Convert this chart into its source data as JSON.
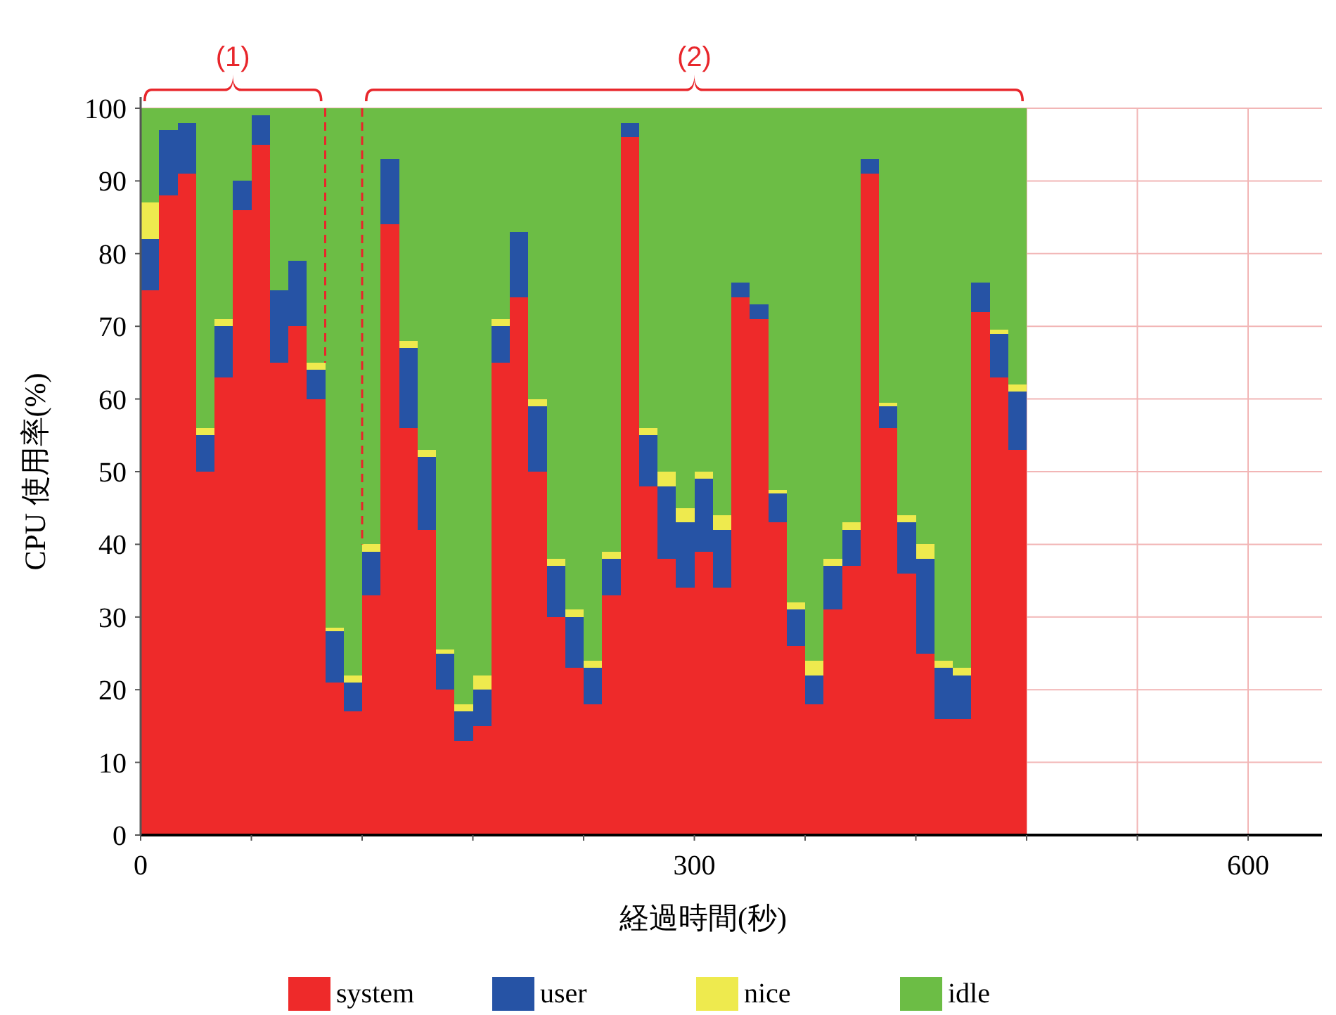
{
  "chart_data": {
    "type": "bar",
    "stacked": true,
    "x": [
      5,
      15,
      25,
      35,
      45,
      55,
      65,
      75,
      85,
      95,
      105,
      115,
      125,
      135,
      145,
      155,
      165,
      175,
      185,
      195,
      205,
      215,
      225,
      235,
      245,
      255,
      265,
      275,
      285,
      295,
      305,
      315,
      325,
      335,
      345,
      355,
      365,
      375,
      385,
      395,
      405,
      415,
      425,
      435,
      445,
      455,
      465,
      475
    ],
    "series": [
      {
        "name": "system",
        "color": "#ee2a2a",
        "values": [
          75,
          88,
          91,
          50,
          63,
          86,
          95,
          65,
          70,
          60,
          21,
          17,
          33,
          84,
          56,
          42,
          20,
          13,
          15,
          65,
          74,
          50,
          30,
          23,
          18,
          33,
          96,
          48,
          38,
          34,
          39,
          34,
          74,
          71,
          43,
          26,
          18,
          31,
          37,
          91,
          56,
          36,
          25,
          16,
          16,
          72,
          63,
          53
        ]
      },
      {
        "name": "user",
        "color": "#2653a5",
        "values": [
          7,
          9,
          7,
          5,
          7,
          4,
          4,
          10,
          9,
          4,
          7,
          4,
          6,
          9,
          11,
          10,
          5,
          4,
          5,
          5,
          9,
          9,
          7,
          7,
          5,
          5,
          2,
          7,
          10,
          9,
          10,
          8,
          2,
          2,
          4,
          5,
          4,
          6,
          5,
          2,
          3,
          7,
          13,
          7,
          6,
          4,
          6,
          8
        ]
      },
      {
        "name": "nice",
        "color": "#eeea4e",
        "values": [
          5,
          0,
          0,
          1,
          1,
          0,
          0,
          0,
          0,
          1,
          0.5,
          1,
          1,
          0,
          1,
          1,
          0.5,
          1,
          2,
          1,
          0,
          1,
          1,
          1,
          1,
          1,
          0,
          1,
          2,
          2,
          1,
          2,
          0,
          0,
          0.5,
          1,
          2,
          1,
          1,
          0,
          0.5,
          1,
          2,
          1,
          1,
          0,
          0.5,
          1
        ]
      },
      {
        "name": "idle",
        "color": "#6cbd45",
        "values": [
          13,
          3,
          2,
          44,
          29,
          10,
          1,
          25,
          21,
          35,
          71.5,
          78,
          60,
          7,
          32,
          47,
          74.5,
          82,
          78,
          29,
          17,
          40,
          62,
          69,
          76,
          61,
          2,
          44,
          50,
          55,
          50,
          56,
          24,
          27,
          52.5,
          68,
          76,
          62,
          57,
          7,
          40.5,
          56,
          60,
          76,
          77,
          24,
          30.5,
          38
        ]
      }
    ],
    "xlim": [
      0,
      640
    ],
    "xticks": [
      0,
      {
        "value": 60,
        "label": null
      },
      {
        "value": 120,
        "label": null
      },
      {
        "value": 180,
        "label": null
      },
      {
        "value": 240,
        "label": null
      },
      300,
      {
        "value": 360,
        "label": null
      },
      {
        "value": 420,
        "label": null
      },
      {
        "value": 480,
        "label": null
      },
      {
        "value": 540,
        "label": null
      },
      600
    ],
    "ylim": [
      0,
      100
    ],
    "yticks": [
      0,
      10,
      20,
      30,
      40,
      50,
      60,
      70,
      80,
      90,
      100
    ],
    "xlabel": "経過時間(秒)",
    "ylabel": "CPU 使用率(%)",
    "grid": true,
    "legend": "bottom",
    "annotations": [
      "(1)",
      "(2)"
    ],
    "ref_lines": [
      {
        "axis": "x",
        "value": 100,
        "color": "#e8262b",
        "line_style": "dashed"
      },
      {
        "axis": "x",
        "value": 120,
        "color": "#e8262b",
        "line_style": "dashed"
      }
    ]
  }
}
